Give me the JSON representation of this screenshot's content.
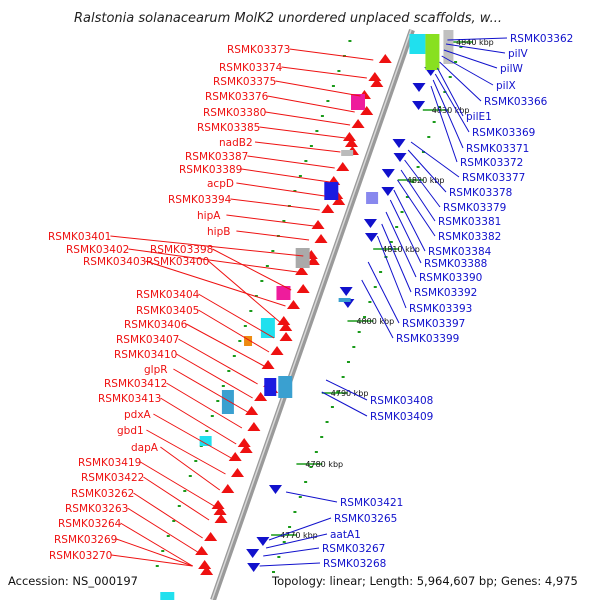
{
  "title": "Ralstonia solanacearum MolK2 unordered unplaced scaffolds, w...",
  "footer": {
    "accession": "Accession: NS_000197",
    "summary": "Topology: linear; Length: 5,964,607 bp; Genes: 4,975"
  },
  "colors": {
    "forward": "#ee1111",
    "reverse": "#1111cc",
    "backbone": "#8a8a8a",
    "tick": "#1a9a1a"
  },
  "ticks": [
    "4840 kbp",
    "4830 kbp",
    "4820 kbp",
    "4810 kbp",
    "4800 kbp",
    "4790 kbp",
    "4780 kbp",
    "4770 kbp"
  ],
  "left_labels": [
    "RSMK03373",
    "RSMK03374",
    "RSMK03375",
    "RSMK03376",
    "RSMK03380",
    "RSMK03385",
    "nadB2",
    "RSMK03387",
    "RSMK03389",
    "acpD",
    "RSMK03394",
    "hipA",
    "hipB",
    "RSMK03401",
    "RSMK03402",
    "RSMK03398",
    "RSMK03403",
    "RSMK03400",
    "RSMK03404",
    "RSMK03405",
    "RSMK03406",
    "RSMK03407",
    "RSMK03410",
    "glpR",
    "RSMK03412",
    "RSMK03413",
    "pdxA",
    "gbd1",
    "dapA",
    "RSMK03419",
    "RSMK03422",
    "RSMK03262",
    "RSMK03263",
    "RSMK03264",
    "RSMK03269",
    "RSMK03270"
  ],
  "right_labels": [
    "RSMK03362",
    "pilV",
    "pilW",
    "pilX",
    "RSMK03366",
    "pilE1",
    "RSMK03369",
    "RSMK03371",
    "RSMK03372",
    "RSMK03377",
    "RSMK03378",
    "RSMK03379",
    "RSMK03381",
    "RSMK03382",
    "RSMK03384",
    "RSMK03388",
    "RSMK03390",
    "RSMK03392",
    "RSMK03393",
    "RSMK03397",
    "RSMK03399",
    "RSMK03408",
    "RSMK03409",
    "RSMK03421",
    "RSMK03265",
    "aatA1",
    "RSMK03267",
    "RSMK03268"
  ]
}
